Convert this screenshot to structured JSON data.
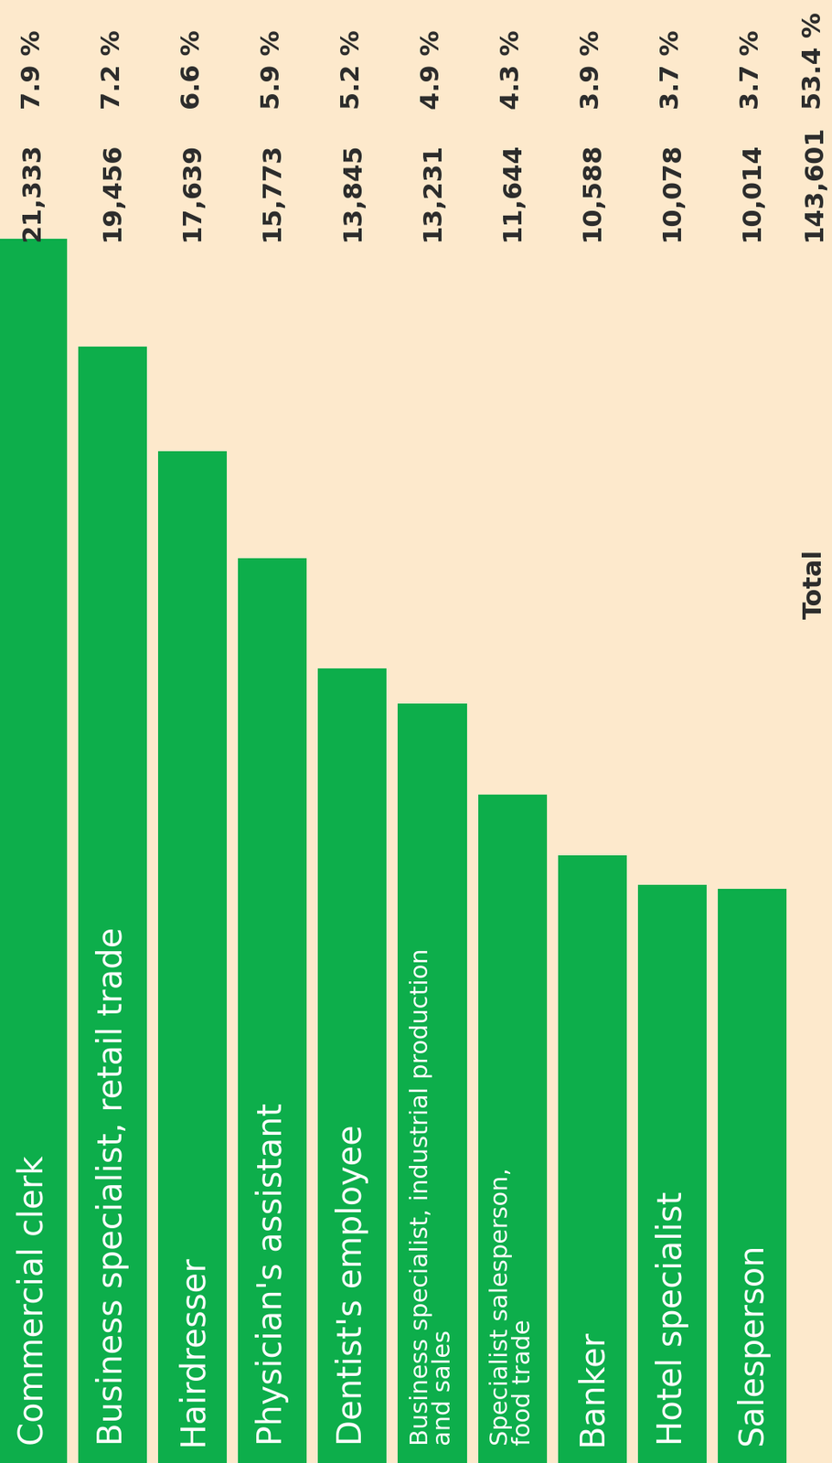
{
  "chart_data": {
    "type": "bar",
    "categories": [
      "Commercial clerk",
      "Business specialist, retail trade",
      "Hairdresser",
      "Physician's assistant",
      "Dentist's employee",
      "Business specialist, industrial production\nand sales",
      "Specialist salesperson,\nfood trade",
      "Banker",
      "Hotel specialist",
      "Salesperson"
    ],
    "values": [
      21333,
      19456,
      17639,
      15773,
      13845,
      13231,
      11644,
      10588,
      10078,
      10014
    ],
    "value_labels": [
      "21,333",
      "19,456",
      "17,639",
      "15,773",
      "13,845",
      "13,231",
      "11,644",
      "10,588",
      "10,078",
      "10,014"
    ],
    "percent": [
      7.9,
      7.2,
      6.6,
      5.9,
      5.2,
      4.9,
      4.3,
      3.9,
      3.7,
      3.7
    ],
    "percent_labels": [
      "7.9 %",
      "7.2 %",
      "6.6 %",
      "5.9 %",
      "5.2 %",
      "4.9 %",
      "4.3 %",
      "3.9 %",
      "3.7 %",
      "3.7 %"
    ],
    "total": {
      "label": "Total",
      "value": 143601,
      "value_label": "143,601",
      "percent": 53.4,
      "percent_label": "53.4 %"
    },
    "color": "#0dae4b",
    "ylim": [
      0,
      25500
    ],
    "tick_labels": false,
    "data_labels": true
  }
}
